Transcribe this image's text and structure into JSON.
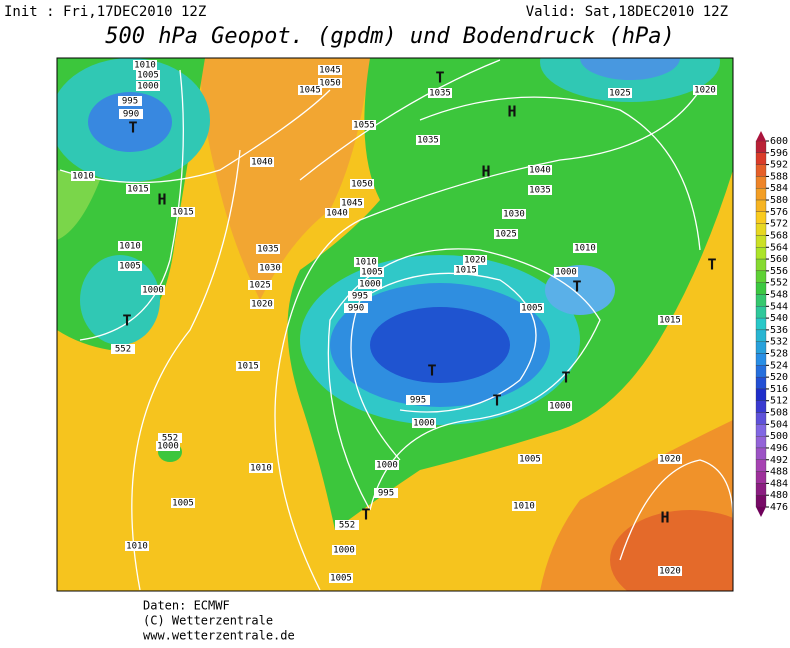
{
  "header": {
    "init": "Init : Fri,17DEC2010 12Z",
    "valid": "Valid: Sat,18DEC2010 12Z",
    "title": "500 hPa Geopot. (gpdm) und Bodendruck (hPa)"
  },
  "legend": {
    "ticks": [
      600,
      596,
      592,
      588,
      584,
      580,
      576,
      572,
      568,
      564,
      560,
      556,
      552,
      548,
      544,
      540,
      536,
      532,
      528,
      524,
      520,
      516,
      512,
      508,
      504,
      500,
      496,
      492,
      488,
      484,
      480,
      476
    ]
  },
  "map": {
    "labels": [
      "1010",
      "1005",
      "1000",
      "995",
      "990",
      "T",
      "1010",
      "1015",
      "H",
      "1015",
      "1010",
      "1005",
      "1000",
      "T",
      "552",
      "1040",
      "1035",
      "1030",
      "1025",
      "1020",
      "1015",
      "1045",
      "1050",
      "1045",
      "1055",
      "1050",
      "1045",
      "1040",
      "T",
      "1035",
      "1035",
      "H",
      "1025",
      "1020",
      "1040",
      "1035",
      "1030",
      "1025",
      "1020",
      "1015",
      "1010",
      "1005",
      "1000",
      "995",
      "990",
      "1010",
      "1000",
      "T",
      "1005",
      "1015",
      "T",
      "T",
      "995",
      "T",
      "T",
      "1000",
      "1000",
      "1005",
      "1020",
      "1010",
      "1000",
      "995",
      "T",
      "552",
      "1000",
      "1005",
      "H",
      "1020",
      "1010",
      "1005",
      "1010",
      "552",
      "1000",
      "H"
    ]
  },
  "footer": {
    "lines": [
      "Daten: ECMWF",
      "(C) Wetterzentrale",
      "www.wetterzentrale.de"
    ]
  }
}
